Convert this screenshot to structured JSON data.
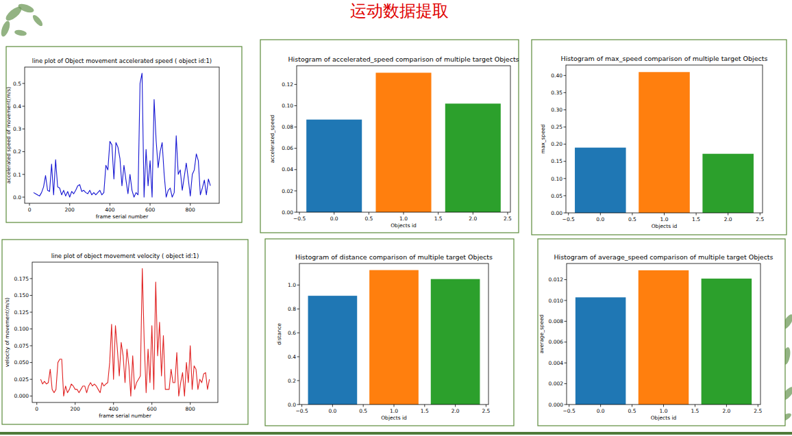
{
  "title": "运动数据提取",
  "chart_data": [
    {
      "type": "line",
      "title": "line plot of Object movement accelerated speed ( object id:1)",
      "x_label": "frame serial number",
      "y_label": "accelerated speed of movement(m/s)",
      "x": [
        20,
        30,
        40,
        50,
        60,
        70,
        80,
        90,
        100,
        110,
        120,
        130,
        140,
        150,
        160,
        170,
        180,
        190,
        200,
        210,
        220,
        230,
        240,
        250,
        260,
        270,
        280,
        290,
        300,
        310,
        320,
        330,
        340,
        350,
        360,
        370,
        380,
        390,
        400,
        410,
        420,
        430,
        440,
        450,
        460,
        470,
        480,
        490,
        500,
        510,
        520,
        530,
        540,
        550,
        560,
        570,
        580,
        590,
        600,
        610,
        620,
        630,
        640,
        650,
        660,
        670,
        680,
        690,
        700,
        710,
        720,
        730,
        740,
        750,
        760,
        770,
        780,
        790,
        800,
        810,
        820,
        830,
        840,
        850,
        860,
        870,
        880,
        890,
        900
      ],
      "values": [
        0.02,
        0.015,
        0.01,
        0.005,
        0.02,
        0.045,
        0.095,
        0.03,
        0.025,
        0.145,
        0.01,
        0.165,
        0.045,
        0.04,
        0.01,
        0.03,
        0.005,
        0.025,
        0.0,
        0.025,
        0.015,
        0.03,
        0.05,
        0.055,
        0.025,
        0.03,
        0.02,
        0.015,
        0.03,
        0.01,
        0.02,
        0.01,
        0.02,
        0.03,
        0.01,
        0.02,
        0.14,
        0.12,
        0.245,
        0.23,
        0.08,
        0.24,
        0.22,
        0.17,
        0.05,
        0.14,
        0.075,
        0.015,
        0.1,
        0.03,
        0.0,
        0.02,
        0.01,
        0.5,
        0.545,
        0.0,
        0.21,
        0.05,
        0.16,
        0.0,
        0.43,
        0.25,
        0.13,
        0.2,
        0.24,
        0.1,
        0.0,
        0.03,
        0.04,
        0.0,
        0.02,
        0.27,
        0.1,
        0.12,
        0.03,
        0.09,
        0.15,
        0.08,
        0.005,
        0.1,
        0.12,
        0.19,
        0.16,
        0.01,
        0.04,
        0.075,
        0.01,
        0.08,
        0.05
      ],
      "color": "#1414d2",
      "xlim": [
        -24,
        944
      ],
      "xticks": [
        0,
        200,
        400,
        600,
        800
      ],
      "ylim": [
        -0.027,
        0.572
      ],
      "yticks": [
        {
          "value": 0,
          "label": "0.0"
        },
        0.1,
        0.2,
        0.3,
        0.4,
        0.5
      ],
      "grid": false
    },
    {
      "type": "bar",
      "title": "Histogram of accelerated_speed comparison of multiple target Objects",
      "x_label": "Objects id",
      "y_label": "accelerated_speed",
      "x": [
        0,
        1,
        2
      ],
      "values": [
        0.087,
        0.131,
        0.102
      ],
      "colors": [
        "#1f77b4",
        "#ff7f0e",
        "#2ca02c"
      ],
      "xlim": [
        -0.54,
        2.54
      ],
      "xticks": [
        {
          "value": -0.5,
          "label": "−0.5"
        },
        {
          "value": 0,
          "label": "0.0"
        },
        0.5,
        {
          "value": 1,
          "label": "1.0"
        },
        1.5,
        {
          "value": 2,
          "label": "2.0"
        },
        2.5
      ],
      "ylim": [
        0,
        0.1376
      ],
      "yticks": [
        {
          "value": 0,
          "label": "0.00"
        },
        0.02,
        0.04,
        0.06,
        0.08,
        {
          "value": 0.1,
          "label": "0.10"
        },
        0.12
      ],
      "grid": false
    },
    {
      "type": "bar",
      "title": "Histogram of max_speed comparison of multiple target Objects",
      "x_label": "Objects id",
      "y_label": "max_speed",
      "x": [
        0,
        1,
        2
      ],
      "values": [
        0.19,
        0.41,
        0.172
      ],
      "colors": [
        "#1f77b4",
        "#ff7f0e",
        "#2ca02c"
      ],
      "xlim": [
        -0.54,
        2.54
      ],
      "xticks": [
        {
          "value": -0.5,
          "label": "−0.5"
        },
        {
          "value": 0,
          "label": "0.0"
        },
        0.5,
        {
          "value": 1,
          "label": "1.0"
        },
        1.5,
        {
          "value": 2,
          "label": "2.0"
        },
        2.5
      ],
      "ylim": [
        0,
        0.4305
      ],
      "yticks": [
        {
          "value": 0,
          "label": "0.00"
        },
        0.05,
        {
          "value": 0.1,
          "label": "0.10"
        },
        0.15,
        {
          "value": 0.2,
          "label": "0.20"
        },
        0.25,
        {
          "value": 0.3,
          "label": "0.30"
        },
        0.35,
        {
          "value": 0.4,
          "label": "0.40"
        }
      ],
      "grid": false
    },
    {
      "type": "line",
      "title": "line plot of object movement velocity ( object id:1)",
      "x_label": "frame serial number",
      "y_label": "velocity of movement(m/s)",
      "x": [
        20,
        30,
        40,
        50,
        60,
        70,
        80,
        90,
        100,
        110,
        120,
        130,
        140,
        150,
        160,
        170,
        180,
        190,
        200,
        210,
        220,
        230,
        240,
        250,
        260,
        270,
        280,
        290,
        300,
        310,
        320,
        330,
        340,
        350,
        360,
        370,
        380,
        390,
        400,
        410,
        420,
        430,
        440,
        450,
        460,
        470,
        480,
        490,
        500,
        510,
        520,
        530,
        540,
        550,
        560,
        570,
        580,
        590,
        600,
        610,
        620,
        630,
        640,
        650,
        660,
        670,
        680,
        690,
        700,
        710,
        720,
        730,
        740,
        750,
        760,
        770,
        780,
        790,
        800,
        810,
        820,
        830,
        840,
        850,
        860,
        870,
        880,
        890,
        900
      ],
      "values": [
        0.025,
        0.018,
        0.022,
        0.018,
        0.02,
        0.04,
        0.01,
        0.005,
        0.01,
        0.05,
        0.055,
        0.055,
        0.0,
        0.015,
        0.005,
        0.01,
        0.018,
        0.015,
        0.01,
        0.01,
        0.005,
        0.01,
        0.015,
        0.015,
        0.005,
        0.015,
        0.02,
        0.015,
        0.018,
        0.015,
        0.01,
        0.005,
        0.02,
        0.015,
        0.018,
        0.02,
        0.05,
        0.107,
        0.025,
        0.105,
        0.07,
        0.03,
        0.08,
        0.06,
        0.02,
        0.07,
        0.045,
        0.0,
        0.06,
        0.01,
        0.02,
        0.025,
        0.03,
        0.19,
        0.08,
        0.005,
        0.07,
        0.02,
        0.105,
        0.01,
        0.17,
        0.06,
        0.11,
        0.03,
        0.09,
        0.01,
        0.01,
        0.01,
        0.04,
        0.02,
        0.02,
        0.065,
        0.0,
        0.02,
        0.035,
        0.0,
        0.05,
        0.02,
        0.075,
        0.01,
        0.045,
        0.04,
        0.01,
        0.025,
        0.02,
        0.033,
        0.035,
        0.01,
        0.025
      ],
      "color": "#e02020",
      "xlim": [
        -24,
        944
      ],
      "xticks": [
        0,
        200,
        400,
        600,
        800
      ],
      "ylim": [
        -0.0095,
        0.1995
      ],
      "yticks": [
        {
          "value": 0,
          "label": "0.000"
        },
        0.025,
        {
          "value": 0.05,
          "label": "0.050"
        },
        0.075,
        {
          "value": 0.1,
          "label": "0.100"
        },
        0.125,
        {
          "value": 0.15,
          "label": "0.150"
        },
        0.175
      ],
      "grid": false
    },
    {
      "type": "bar",
      "title": "Histogram of distance comparison of multiple target Objects",
      "x_label": "Objects id",
      "y_label": "distance",
      "x": [
        0,
        1,
        2
      ],
      "values": [
        0.91,
        1.125,
        1.05
      ],
      "colors": [
        "#1f77b4",
        "#ff7f0e",
        "#2ca02c"
      ],
      "xlim": [
        -0.54,
        2.54
      ],
      "xticks": [
        {
          "value": -0.5,
          "label": "−0.5"
        },
        {
          "value": 0,
          "label": "0.0"
        },
        0.5,
        {
          "value": 1,
          "label": "1.0"
        },
        1.5,
        {
          "value": 2,
          "label": "2.0"
        },
        2.5
      ],
      "ylim": [
        0,
        1.18
      ],
      "yticks": [
        {
          "value": 0,
          "label": "0.0"
        },
        0.2,
        0.4,
        0.6,
        0.8,
        {
          "value": 1,
          "label": "1.0"
        }
      ],
      "grid": false
    },
    {
      "type": "bar",
      "title": "Histogram of average_speed comparison of multiple target Objects",
      "x_label": "Objects id",
      "y_label": "average_speed",
      "x": [
        0,
        1,
        2
      ],
      "values": [
        0.0103,
        0.0129,
        0.0121
      ],
      "colors": [
        "#1f77b4",
        "#ff7f0e",
        "#2ca02c"
      ],
      "xlim": [
        -0.54,
        2.54
      ],
      "xticks": [
        {
          "value": -0.5,
          "label": "−0.5"
        },
        {
          "value": 0,
          "label": "0.0"
        },
        0.5,
        {
          "value": 1,
          "label": "1.0"
        },
        1.5,
        {
          "value": 2,
          "label": "2.0"
        },
        2.5
      ],
      "ylim": [
        0,
        0.01355
      ],
      "yticks": [
        {
          "value": 0,
          "label": "0.000"
        },
        0.002,
        0.004,
        0.006,
        0.008,
        {
          "value": 0.01,
          "label": "0.010"
        },
        0.012
      ],
      "grid": false
    }
  ]
}
